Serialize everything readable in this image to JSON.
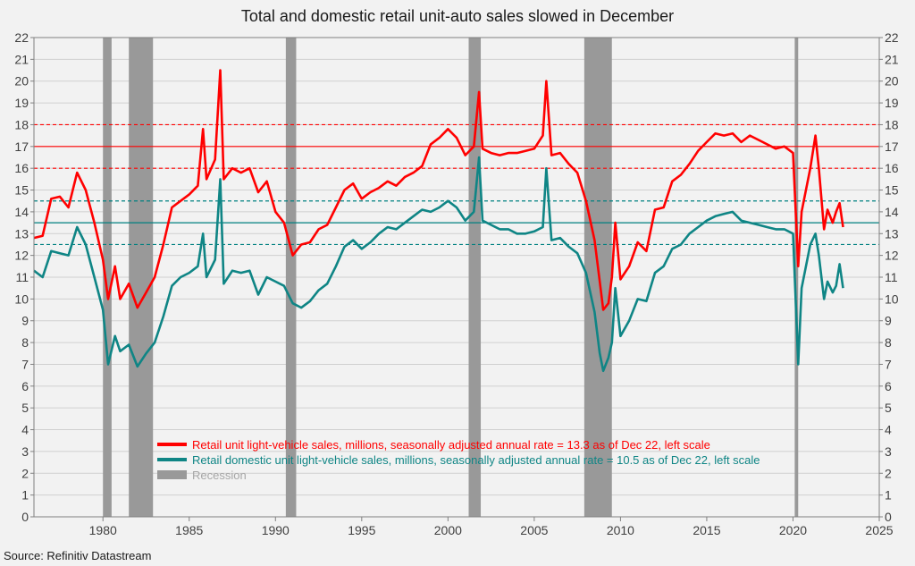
{
  "chart_data": {
    "type": "line",
    "title": "Total and domestic retail unit-auto sales slowed in December",
    "source": "Source: Refinitiv Datastream",
    "xlabel": "",
    "ylabel": "",
    "xlim": [
      1976,
      2025
    ],
    "ylim": [
      0,
      22
    ],
    "x_ticks": [
      1980,
      1985,
      1990,
      1995,
      2000,
      2005,
      2010,
      2015,
      2020,
      2025
    ],
    "y_ticks": [
      0,
      1,
      2,
      3,
      4,
      5,
      6,
      7,
      8,
      9,
      10,
      11,
      12,
      13,
      14,
      15,
      16,
      17,
      18,
      19,
      20,
      21,
      22
    ],
    "y_tick_labels": [
      "0",
      "1",
      "2",
      "3",
      "4",
      "5",
      "6",
      "7",
      "8",
      "9",
      "10",
      "11",
      "12",
      "13",
      "14",
      "15",
      "16",
      "17",
      "18",
      "19",
      "20",
      "21",
      "22"
    ],
    "x_tick_labels": [
      "1980",
      "1985",
      "1990",
      "1995",
      "2000",
      "2005",
      "2010",
      "2015",
      "2020",
      "2025"
    ],
    "recessions": [
      [
        1980.0,
        1980.5
      ],
      [
        1981.5,
        1982.9
      ],
      [
        1990.6,
        1991.2
      ],
      [
        2001.2,
        2001.9
      ],
      [
        2007.9,
        2009.5
      ],
      [
        2020.1,
        2020.3
      ]
    ],
    "reference_lines": [
      {
        "y": 18.0,
        "color": "#ff0000",
        "dash": true
      },
      {
        "y": 17.0,
        "color": "#ff0000",
        "dash": false
      },
      {
        "y": 16.0,
        "color": "#ff0000",
        "dash": true
      },
      {
        "y": 14.5,
        "color": "#008080",
        "dash": true
      },
      {
        "y": 13.5,
        "color": "#008080",
        "dash": false
      },
      {
        "y": 12.5,
        "color": "#008080",
        "dash": true
      }
    ],
    "series": [
      {
        "name": "Retail unit light-vehicle sales, millions, seasonally adjusted annual rate = 13.3 as of Dec 22, left scale",
        "color": "#ff0000",
        "x": [
          1976.0,
          1976.5,
          1977.0,
          1977.5,
          1978.0,
          1978.5,
          1979.0,
          1979.5,
          1980.0,
          1980.3,
          1980.7,
          1981.0,
          1981.5,
          1982.0,
          1982.5,
          1983.0,
          1983.5,
          1984.0,
          1984.5,
          1985.0,
          1985.5,
          1985.8,
          1986.0,
          1986.5,
          1986.8,
          1987.0,
          1987.5,
          1988.0,
          1988.5,
          1989.0,
          1989.5,
          1990.0,
          1990.5,
          1991.0,
          1991.5,
          1992.0,
          1992.5,
          1993.0,
          1993.5,
          1994.0,
          1994.5,
          1995.0,
          1995.5,
          1996.0,
          1996.5,
          1997.0,
          1997.5,
          1998.0,
          1998.5,
          1999.0,
          1999.5,
          2000.0,
          2000.5,
          2001.0,
          2001.5,
          2001.8,
          2002.0,
          2002.5,
          2003.0,
          2003.5,
          2004.0,
          2004.5,
          2005.0,
          2005.5,
          2005.7,
          2006.0,
          2006.5,
          2007.0,
          2007.5,
          2008.0,
          2008.5,
          2008.8,
          2009.0,
          2009.3,
          2009.5,
          2009.7,
          2010.0,
          2010.5,
          2011.0,
          2011.5,
          2012.0,
          2012.5,
          2013.0,
          2013.5,
          2014.0,
          2014.5,
          2015.0,
          2015.5,
          2016.0,
          2016.5,
          2017.0,
          2017.5,
          2018.0,
          2018.5,
          2019.0,
          2019.5,
          2020.0,
          2020.3,
          2020.5,
          2021.0,
          2021.3,
          2021.5,
          2021.8,
          2022.0,
          2022.3,
          2022.5,
          2022.7,
          2022.9
        ],
        "values": [
          12.8,
          12.9,
          14.6,
          14.7,
          14.2,
          15.8,
          15.0,
          13.5,
          11.8,
          10.0,
          11.5,
          10.0,
          10.7,
          9.6,
          10.3,
          11.0,
          12.5,
          14.2,
          14.5,
          14.8,
          15.2,
          17.8,
          15.5,
          16.4,
          20.5,
          15.5,
          16.0,
          15.8,
          16.0,
          14.9,
          15.4,
          14.0,
          13.5,
          12.0,
          12.5,
          12.6,
          13.2,
          13.4,
          14.2,
          15.0,
          15.3,
          14.6,
          14.9,
          15.1,
          15.4,
          15.2,
          15.6,
          15.8,
          16.1,
          17.1,
          17.4,
          17.8,
          17.4,
          16.6,
          17.0,
          19.5,
          16.9,
          16.7,
          16.6,
          16.7,
          16.7,
          16.8,
          16.9,
          17.5,
          20.0,
          16.6,
          16.7,
          16.2,
          15.8,
          14.5,
          12.7,
          10.8,
          9.5,
          9.8,
          11.0,
          13.5,
          10.9,
          11.5,
          12.6,
          12.2,
          14.1,
          14.2,
          15.4,
          15.7,
          16.2,
          16.8,
          17.2,
          17.6,
          17.5,
          17.6,
          17.2,
          17.5,
          17.3,
          17.1,
          16.9,
          17.0,
          16.7,
          11.5,
          14.0,
          16.0,
          17.5,
          16.0,
          13.2,
          14.1,
          13.5,
          14.0,
          14.4,
          13.3
        ]
      },
      {
        "name": "Retail domestic unit light-vehicle sales, millions, seasonally adjusted annual rate = 10.5 as of Dec 22, left scale",
        "color": "#0f8585",
        "x": [
          1976.0,
          1976.5,
          1977.0,
          1977.5,
          1978.0,
          1978.5,
          1979.0,
          1979.5,
          1980.0,
          1980.3,
          1980.7,
          1981.0,
          1981.5,
          1982.0,
          1982.5,
          1983.0,
          1983.5,
          1984.0,
          1984.5,
          1985.0,
          1985.5,
          1985.8,
          1986.0,
          1986.5,
          1986.8,
          1987.0,
          1987.5,
          1988.0,
          1988.5,
          1989.0,
          1989.5,
          1990.0,
          1990.5,
          1991.0,
          1991.5,
          1992.0,
          1992.5,
          1993.0,
          1993.5,
          1994.0,
          1994.5,
          1995.0,
          1995.5,
          1996.0,
          1996.5,
          1997.0,
          1997.5,
          1998.0,
          1998.5,
          1999.0,
          1999.5,
          2000.0,
          2000.5,
          2001.0,
          2001.5,
          2001.8,
          2002.0,
          2002.5,
          2003.0,
          2003.5,
          2004.0,
          2004.5,
          2005.0,
          2005.5,
          2005.7,
          2006.0,
          2006.5,
          2007.0,
          2007.5,
          2008.0,
          2008.5,
          2008.8,
          2009.0,
          2009.3,
          2009.5,
          2009.7,
          2010.0,
          2010.5,
          2011.0,
          2011.5,
          2012.0,
          2012.5,
          2013.0,
          2013.5,
          2014.0,
          2014.5,
          2015.0,
          2015.5,
          2016.0,
          2016.5,
          2017.0,
          2017.5,
          2018.0,
          2018.5,
          2019.0,
          2019.5,
          2020.0,
          2020.3,
          2020.5,
          2021.0,
          2021.3,
          2021.5,
          2021.8,
          2022.0,
          2022.3,
          2022.5,
          2022.7,
          2022.9
        ],
        "values": [
          11.3,
          11.0,
          12.2,
          12.1,
          12.0,
          13.3,
          12.5,
          11.0,
          9.5,
          7.0,
          8.3,
          7.6,
          7.9,
          6.9,
          7.5,
          8.0,
          9.2,
          10.6,
          11.0,
          11.2,
          11.5,
          13.0,
          11.0,
          11.8,
          15.5,
          10.7,
          11.3,
          11.2,
          11.3,
          10.2,
          11.0,
          10.8,
          10.6,
          9.8,
          9.6,
          9.9,
          10.4,
          10.7,
          11.5,
          12.4,
          12.7,
          12.3,
          12.6,
          13.0,
          13.3,
          13.2,
          13.5,
          13.8,
          14.1,
          14.0,
          14.2,
          14.5,
          14.2,
          13.6,
          14.0,
          16.5,
          13.6,
          13.4,
          13.2,
          13.2,
          13.0,
          13.0,
          13.1,
          13.3,
          16.0,
          12.7,
          12.8,
          12.4,
          12.1,
          11.2,
          9.4,
          7.5,
          6.7,
          7.3,
          8.0,
          10.5,
          8.3,
          9.0,
          10.0,
          9.9,
          11.2,
          11.5,
          12.3,
          12.5,
          13.0,
          13.3,
          13.6,
          13.8,
          13.9,
          14.0,
          13.6,
          13.5,
          13.4,
          13.3,
          13.2,
          13.2,
          13.0,
          7.0,
          10.5,
          12.5,
          13.0,
          12.0,
          10.0,
          10.8,
          10.3,
          10.6,
          11.6,
          10.5
        ]
      }
    ],
    "legend": [
      {
        "label": "Retail unit light-vehicle sales, millions, seasonally adjusted annual rate = 13.3 as of Dec 22, left scale",
        "color": "#ff0000"
      },
      {
        "label": "Retail domestic unit light-vehicle sales, millions, seasonally adjusted annual rate = 10.5 as of Dec 22, left scale",
        "color": "#0f8585"
      },
      {
        "label": "Recession",
        "color": "#999999"
      }
    ]
  }
}
